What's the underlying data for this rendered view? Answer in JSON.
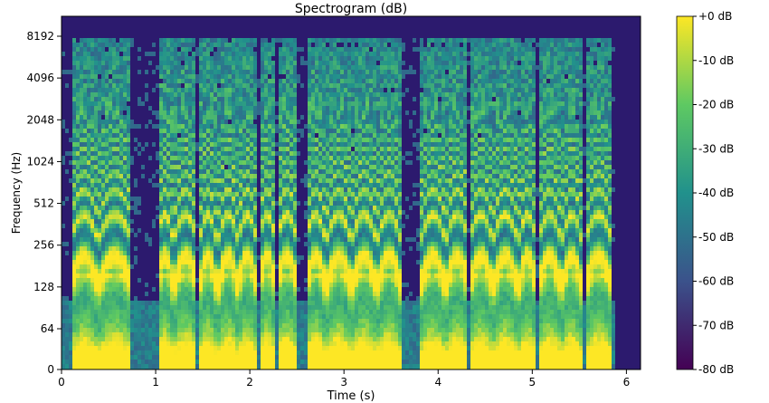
{
  "chart_data": {
    "type": "heatmap",
    "title": "Spectrogram (dB)",
    "xlabel": "Time (s)",
    "ylabel": "Frequency (Hz)",
    "xlim": [
      0,
      6.15
    ],
    "x_ticks": [
      0,
      1,
      2,
      3,
      4,
      5,
      6
    ],
    "y_scale": "log2 (with 0 at bottom)",
    "y_ticks": [
      {
        "value": 0,
        "label": "0"
      },
      {
        "value": 64,
        "label": "64"
      },
      {
        "value": 128,
        "label": "128"
      },
      {
        "value": 256,
        "label": "256"
      },
      {
        "value": 512,
        "label": "512"
      },
      {
        "value": 1024,
        "label": "1024"
      },
      {
        "value": 2048,
        "label": "2048"
      },
      {
        "value": 4096,
        "label": "4096"
      },
      {
        "value": 8192,
        "label": "8192"
      }
    ],
    "colorbar": {
      "range_db": [
        -80,
        0
      ],
      "ticks": [
        "+0 dB",
        "-10 dB",
        "-20 dB",
        "-30 dB",
        "-40 dB",
        "-50 dB",
        "-60 dB",
        "-70 dB",
        "-80 dB"
      ],
      "colormap": "viridis",
      "colors": [
        "#440154",
        "#3b528b",
        "#21918c",
        "#5ec962",
        "#fde725"
      ],
      "background": "#2c1a6e"
    },
    "grid": false,
    "legend": "none",
    "voiced_segments_s": [
      [
        0.08,
        0.36
      ],
      [
        0.38,
        0.72
      ],
      [
        1.0,
        1.16
      ],
      [
        1.18,
        1.42
      ],
      [
        1.45,
        1.62
      ],
      [
        1.65,
        1.85
      ],
      [
        1.86,
        2.05
      ],
      [
        2.08,
        2.25
      ],
      [
        2.27,
        2.48
      ],
      [
        2.58,
        2.78
      ],
      [
        2.8,
        3.05
      ],
      [
        3.07,
        3.32
      ],
      [
        3.34,
        3.58
      ],
      [
        3.8,
        4.05
      ],
      [
        4.07,
        4.3
      ],
      [
        4.32,
        4.55
      ],
      [
        4.57,
        4.82
      ],
      [
        4.84,
        5.02
      ],
      [
        5.05,
        5.28
      ],
      [
        5.3,
        5.5
      ],
      [
        5.55,
        5.82
      ]
    ]
  }
}
